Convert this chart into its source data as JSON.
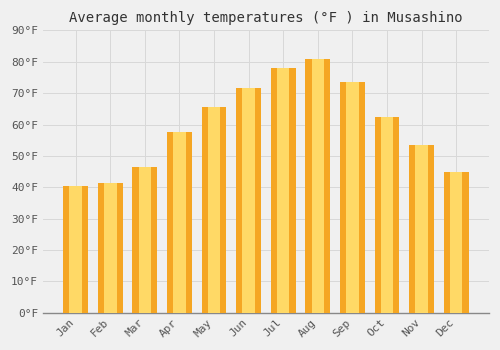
{
  "title": "Average monthly temperatures (°F ) in Musashino",
  "months": [
    "Jan",
    "Feb",
    "Mar",
    "Apr",
    "May",
    "Jun",
    "Jul",
    "Aug",
    "Sep",
    "Oct",
    "Nov",
    "Dec"
  ],
  "values": [
    40.5,
    41.5,
    46.5,
    57.5,
    65.5,
    71.5,
    78.0,
    81.0,
    73.5,
    62.5,
    53.5,
    45.0
  ],
  "bar_color_outer": "#F5A623",
  "bar_color_inner": "#FFD966",
  "background_color": "#f0f0f0",
  "grid_color": "#d8d8d8",
  "ylim": [
    0,
    90
  ],
  "ytick_step": 10,
  "title_fontsize": 10,
  "tick_fontsize": 8,
  "font_family": "monospace",
  "bar_width": 0.72
}
